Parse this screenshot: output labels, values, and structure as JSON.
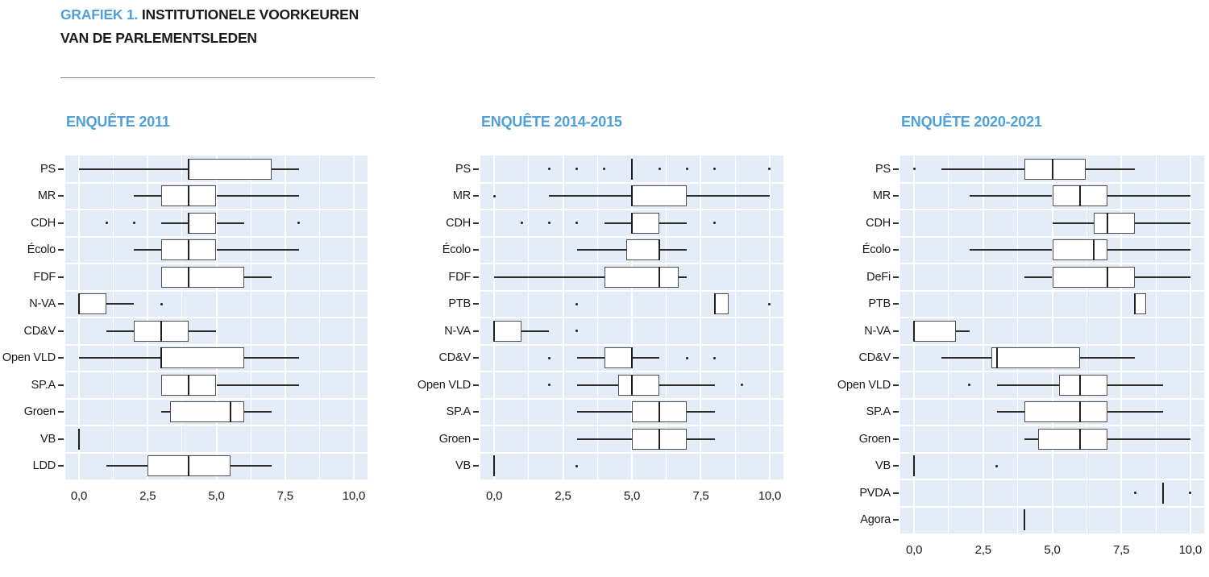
{
  "header": {
    "title_prefix": "GRAFIEK 1.",
    "title_line1_rest": " INSTITUTIONELE VOORKEUREN",
    "title_line2": "VAN DE PARLEMENTSLEDEN"
  },
  "colors": {
    "accent_blue": "#4f9fd8",
    "plot_background": "#e4edf7",
    "gridline": "#ffffff",
    "box_border": "#4d4d4d",
    "line_dark": "#1f1f1f"
  },
  "axis": {
    "range": [
      -0.5,
      10.5
    ],
    "tick_values": [
      0,
      2.5,
      5,
      7.5,
      10
    ],
    "tick_labels": [
      "0,0",
      "2,5",
      "5,0",
      "7,5",
      "10,0"
    ],
    "minor_grid_step": 1.25
  },
  "chart_data": [
    {
      "type": "boxplot-horizontal",
      "title": "ENQUÊTE 2011",
      "xlabel": "",
      "ylabel": "",
      "xlim": [
        -0.5,
        10.5
      ],
      "rows": [
        {
          "party": "PS",
          "min": 0,
          "q1": 4,
          "median": 4,
          "q3": 7,
          "max": 8,
          "outliers": []
        },
        {
          "party": "MR",
          "min": 2,
          "q1": 3,
          "median": 4,
          "q3": 5,
          "max": 8,
          "outliers": []
        },
        {
          "party": "CDH",
          "min": 3,
          "q1": 4,
          "median": 4,
          "q3": 5,
          "max": 6,
          "outliers": [
            1,
            2,
            8
          ]
        },
        {
          "party": "Écolo",
          "min": 2,
          "q1": 3,
          "median": 4,
          "q3": 5,
          "max": 8,
          "outliers": []
        },
        {
          "party": "FDF",
          "min": 3,
          "q1": 3,
          "median": 4,
          "q3": 6,
          "max": 7,
          "outliers": []
        },
        {
          "party": "N-VA",
          "min": 0,
          "q1": 0,
          "median": 0,
          "q3": 1,
          "max": 2,
          "outliers": [
            3
          ]
        },
        {
          "party": "CD&V",
          "min": 1,
          "q1": 2,
          "median": 3,
          "q3": 4,
          "max": 5,
          "outliers": []
        },
        {
          "party": "Open VLD",
          "min": 0,
          "q1": 3,
          "median": 3,
          "q3": 6,
          "max": 8,
          "outliers": []
        },
        {
          "party": "SP.A",
          "min": 3,
          "q1": 3,
          "median": 4,
          "q3": 5,
          "max": 8,
          "outliers": []
        },
        {
          "party": "Groen",
          "min": 3,
          "q1": 3.3,
          "median": 5.5,
          "q3": 6,
          "max": 7,
          "outliers": []
        },
        {
          "party": "VB",
          "line_at": 0,
          "outliers": []
        },
        {
          "party": "LDD",
          "min": 1,
          "q1": 2.5,
          "median": 4,
          "q3": 5.5,
          "max": 7,
          "outliers": []
        }
      ]
    },
    {
      "type": "boxplot-horizontal",
      "title": "ENQUÊTE 2014-2015",
      "xlabel": "",
      "ylabel": "",
      "xlim": [
        -0.5,
        10.5
      ],
      "rows": [
        {
          "party": "PS",
          "line_at": 5,
          "outliers": [
            2,
            3,
            4,
            6,
            7,
            8,
            10
          ]
        },
        {
          "party": "MR",
          "min": 2,
          "q1": 5,
          "median": 5,
          "q3": 7,
          "max": 10,
          "outliers": [
            0
          ]
        },
        {
          "party": "CDH",
          "min": 4,
          "q1": 5,
          "median": 5,
          "q3": 6,
          "max": 7,
          "outliers": [
            1,
            2,
            3,
            8
          ]
        },
        {
          "party": "Écolo",
          "min": 3,
          "q1": 4.8,
          "median": 6,
          "q3": 6,
          "max": 7,
          "outliers": []
        },
        {
          "party": "FDF",
          "min": 0,
          "q1": 4,
          "median": 6,
          "q3": 6.7,
          "max": 7,
          "outliers": []
        },
        {
          "party": "PTB",
          "min": 8,
          "q1": 8,
          "median": 8,
          "q3": 8.5,
          "max": 8.5,
          "outliers": [
            3,
            10
          ]
        },
        {
          "party": "N-VA",
          "min": 0,
          "q1": 0,
          "median": 0,
          "q3": 1,
          "max": 2,
          "outliers": [
            3
          ]
        },
        {
          "party": "CD&V",
          "min": 3,
          "q1": 4,
          "median": 5,
          "q3": 5,
          "max": 6,
          "outliers": [
            2,
            7,
            8
          ]
        },
        {
          "party": "Open VLD",
          "min": 3,
          "q1": 4.5,
          "median": 5,
          "q3": 6,
          "max": 8,
          "outliers": [
            2,
            9
          ]
        },
        {
          "party": "SP.A",
          "min": 3,
          "q1": 5,
          "median": 6,
          "q3": 7,
          "max": 8,
          "outliers": []
        },
        {
          "party": "Groen",
          "min": 3,
          "q1": 5,
          "median": 6,
          "q3": 7,
          "max": 8,
          "outliers": []
        },
        {
          "party": "VB",
          "line_at": 0,
          "outliers": [
            3
          ]
        }
      ]
    },
    {
      "type": "boxplot-horizontal",
      "title": "ENQUÊTE 2020-2021",
      "xlabel": "",
      "ylabel": "",
      "xlim": [
        -0.5,
        10.5
      ],
      "rows": [
        {
          "party": "PS",
          "min": 1,
          "q1": 4,
          "median": 5,
          "q3": 6.2,
          "max": 8,
          "outliers": [
            0
          ]
        },
        {
          "party": "MR",
          "min": 2,
          "q1": 5,
          "median": 6,
          "q3": 7,
          "max": 10,
          "outliers": []
        },
        {
          "party": "CDH",
          "min": 5,
          "q1": 6.5,
          "median": 7,
          "q3": 8,
          "max": 10,
          "outliers": []
        },
        {
          "party": "Écolo",
          "min": 2,
          "q1": 5,
          "median": 6.5,
          "q3": 7,
          "max": 10,
          "outliers": []
        },
        {
          "party": "DeFi",
          "min": 4,
          "q1": 5,
          "median": 7,
          "q3": 8,
          "max": 10,
          "outliers": []
        },
        {
          "party": "PTB",
          "min": 8,
          "q1": 8,
          "median": 8,
          "q3": 8.4,
          "max": 8.4,
          "outliers": []
        },
        {
          "party": "N-VA",
          "min": 0,
          "q1": 0,
          "median": 0,
          "q3": 1.5,
          "max": 2,
          "outliers": []
        },
        {
          "party": "CD&V",
          "min": 1,
          "q1": 2.8,
          "median": 3,
          "q3": 6,
          "max": 8,
          "outliers": []
        },
        {
          "party": "Open VLD",
          "min": 3,
          "q1": 5.25,
          "median": 6,
          "q3": 7,
          "max": 9,
          "outliers": [
            2
          ]
        },
        {
          "party": "SP.A",
          "min": 3,
          "q1": 4,
          "median": 6,
          "q3": 7,
          "max": 9,
          "outliers": []
        },
        {
          "party": "Groen",
          "min": 4,
          "q1": 4.5,
          "median": 6,
          "q3": 7,
          "max": 10,
          "outliers": []
        },
        {
          "party": "VB",
          "line_at": 0,
          "outliers": [
            3
          ]
        },
        {
          "party": "PVDA",
          "line_at": 9,
          "outliers": [
            8,
            10
          ]
        },
        {
          "party": "Agora",
          "line_at": 4,
          "outliers": []
        }
      ]
    }
  ]
}
